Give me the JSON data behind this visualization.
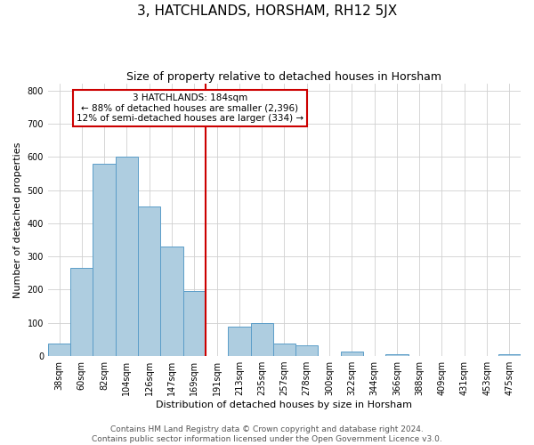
{
  "title": "3, HATCHLANDS, HORSHAM, RH12 5JX",
  "subtitle": "Size of property relative to detached houses in Horsham",
  "xlabel": "Distribution of detached houses by size in Horsham",
  "ylabel": "Number of detached properties",
  "bar_labels": [
    "38sqm",
    "60sqm",
    "82sqm",
    "104sqm",
    "126sqm",
    "147sqm",
    "169sqm",
    "191sqm",
    "213sqm",
    "235sqm",
    "257sqm",
    "278sqm",
    "300sqm",
    "322sqm",
    "344sqm",
    "366sqm",
    "388sqm",
    "409sqm",
    "431sqm",
    "453sqm",
    "475sqm"
  ],
  "bar_heights": [
    37,
    265,
    580,
    600,
    450,
    330,
    197,
    0,
    90,
    100,
    37,
    32,
    0,
    13,
    0,
    5,
    0,
    0,
    0,
    0,
    5
  ],
  "bar_color": "#aecde0",
  "bar_edge_color": "#5b9dc8",
  "vline_color": "#cc0000",
  "annotation_line1": "3 HATCHLANDS: 184sqm",
  "annotation_line2": "← 88% of detached houses are smaller (2,396)",
  "annotation_line3": "12% of semi-detached houses are larger (334) →",
  "annotation_box_color": "#cc0000",
  "ylim": [
    0,
    820
  ],
  "yticks": [
    0,
    100,
    200,
    300,
    400,
    500,
    600,
    700,
    800
  ],
  "footer_line1": "Contains HM Land Registry data © Crown copyright and database right 2024.",
  "footer_line2": "Contains public sector information licensed under the Open Government Licence v3.0.",
  "background_color": "#ffffff",
  "grid_color": "#d0d0d0",
  "title_fontsize": 11,
  "subtitle_fontsize": 9,
  "label_fontsize": 8,
  "tick_fontsize": 7,
  "footer_fontsize": 6.5
}
